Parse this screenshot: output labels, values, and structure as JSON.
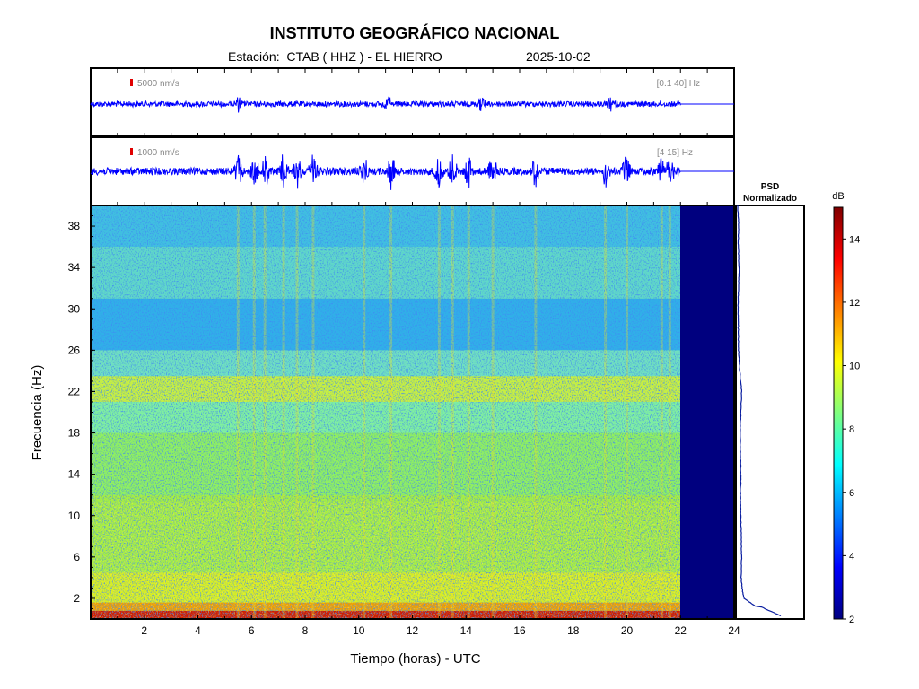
{
  "header": {
    "title": "INSTITUTO GEOGRÁFICO NACIONAL",
    "station": "Estación:  CTAB ( HHZ ) - EL HIERRO",
    "date": "2025-10-02"
  },
  "colors": {
    "trace": "#0000ff",
    "scale_mark": "#e00000",
    "nodata": "#00007f"
  },
  "chart_data": [
    {
      "type": "line",
      "panel": "seismogram-broadband",
      "scale_label": "5000 nm/s",
      "band_label": "[0.1 40] Hz",
      "x_range": [
        0,
        24
      ],
      "data_end_hour": 22,
      "events_hours": [
        5.5,
        11.1,
        14.6,
        19.4
      ]
    },
    {
      "type": "line",
      "panel": "seismogram-filtered",
      "scale_label": "1000 nm/s",
      "band_label": "[4 15] Hz",
      "x_range": [
        0,
        24
      ],
      "data_end_hour": 22,
      "events_hours": [
        5.5,
        6.1,
        6.5,
        7.2,
        7.7,
        8.3,
        10.2,
        11.2,
        13.0,
        13.5,
        14.1,
        15.0,
        16.6,
        19.2,
        20.0,
        21.3,
        21.6
      ]
    },
    {
      "type": "heatmap",
      "panel": "spectrogram",
      "xlabel": "Tiempo (horas) - UTC",
      "ylabel": "Frecuencia  (Hz)",
      "xlim": [
        0,
        24
      ],
      "ylim": [
        0,
        40
      ],
      "x_ticks": [
        2,
        4,
        6,
        8,
        10,
        12,
        14,
        16,
        18,
        20,
        22,
        24
      ],
      "y_ticks": [
        2,
        6,
        10,
        14,
        18,
        22,
        26,
        30,
        34,
        38
      ],
      "data_end_hour": 22,
      "colorbar": {
        "label": "dB",
        "range": [
          2,
          15
        ],
        "ticks": [
          2,
          4,
          6,
          8,
          10,
          12,
          14
        ]
      }
    },
    {
      "type": "line",
      "panel": "psd",
      "title_lines": [
        "PSD",
        "Normalizado"
      ],
      "ylim": [
        0,
        40
      ],
      "freq": [
        0.3,
        1,
        2,
        3,
        4,
        6,
        8,
        10,
        12,
        14,
        16,
        18,
        20,
        22,
        24,
        26,
        28,
        30,
        32,
        34,
        36,
        38,
        40
      ],
      "psd_norm": [
        0.95,
        0.6,
        0.2,
        0.14,
        0.12,
        0.13,
        0.12,
        0.11,
        0.1,
        0.11,
        0.1,
        0.09,
        0.11,
        0.13,
        0.08,
        0.05,
        0.04,
        0.03,
        0.05,
        0.06,
        0.04,
        0.05,
        0.02
      ]
    }
  ]
}
